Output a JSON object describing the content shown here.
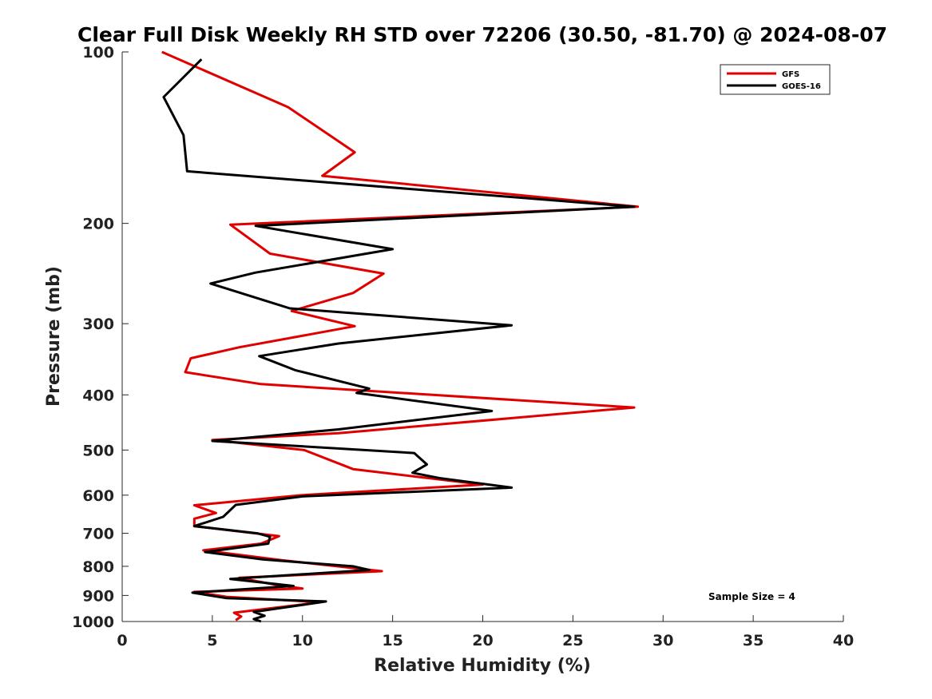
{
  "chart_data": {
    "type": "line",
    "title": "Clear Full Disk Weekly RH STD over 72206 (30.50, -81.70) @ 2024-08-07",
    "xlabel": "Relative Humidity (%)",
    "ylabel": "Pressure (mb)",
    "xlim": [
      0,
      40
    ],
    "ylim": [
      1000,
      100
    ],
    "y_scale": "log",
    "x_ticks": [
      0,
      5,
      10,
      15,
      20,
      25,
      30,
      35,
      40
    ],
    "y_ticks": [
      100,
      200,
      300,
      400,
      500,
      600,
      700,
      800,
      900,
      1000
    ],
    "grid": false,
    "legend_position": "top-right",
    "annotation": "Sample Size = 4",
    "series": [
      {
        "name": "GFS",
        "color": "#e00000",
        "points": [
          [
            2.2,
            100
          ],
          [
            9.2,
            125
          ],
          [
            12.9,
            150
          ],
          [
            11.1,
            165
          ],
          [
            28.6,
            187
          ],
          [
            6.0,
            201
          ],
          [
            8.2,
            226
          ],
          [
            14.5,
            245
          ],
          [
            12.8,
            265
          ],
          [
            9.4,
            285
          ],
          [
            12.9,
            303
          ],
          [
            6.5,
            330
          ],
          [
            3.8,
            345
          ],
          [
            3.5,
            365
          ],
          [
            7.7,
            383
          ],
          [
            28.4,
            421
          ],
          [
            12.0,
            467
          ],
          [
            5.0,
            480
          ],
          [
            10.1,
            500
          ],
          [
            12.8,
            540
          ],
          [
            20.0,
            575
          ],
          [
            10.0,
            600
          ],
          [
            4.0,
            625
          ],
          [
            5.2,
            645
          ],
          [
            4.0,
            660
          ],
          [
            4.0,
            680
          ],
          [
            8.7,
            708
          ],
          [
            7.7,
            730
          ],
          [
            4.5,
            750
          ],
          [
            8.8,
            780
          ],
          [
            14.4,
            816
          ],
          [
            6.5,
            838
          ],
          [
            8.5,
            862
          ],
          [
            10.0,
            875
          ],
          [
            4.0,
            887
          ],
          [
            5.8,
            905
          ],
          [
            11.0,
            925
          ],
          [
            6.2,
            965
          ],
          [
            6.6,
            980
          ],
          [
            6.3,
            995
          ]
        ]
      },
      {
        "name": "GOES-16",
        "color": "#000000",
        "points": [
          [
            4.4,
            103
          ],
          [
            2.3,
            120
          ],
          [
            3.4,
            140
          ],
          [
            3.6,
            162
          ],
          [
            28.4,
            187
          ],
          [
            7.4,
            202
          ],
          [
            15.0,
            222
          ],
          [
            7.4,
            244
          ],
          [
            4.9,
            255
          ],
          [
            9.3,
            282
          ],
          [
            21.6,
            302
          ],
          [
            12.0,
            325
          ],
          [
            7.6,
            342
          ],
          [
            9.6,
            362
          ],
          [
            13.7,
            390
          ],
          [
            13.0,
            397
          ],
          [
            20.5,
            427
          ],
          [
            12.0,
            460
          ],
          [
            5.0,
            482
          ],
          [
            16.2,
            506
          ],
          [
            16.9,
            530
          ],
          [
            16.1,
            548
          ],
          [
            17.6,
            560
          ],
          [
            21.6,
            582
          ],
          [
            10.0,
            603
          ],
          [
            6.3,
            624
          ],
          [
            5.6,
            655
          ],
          [
            4.0,
            680
          ],
          [
            7.5,
            700
          ],
          [
            8.2,
            710
          ],
          [
            8.1,
            730
          ],
          [
            4.6,
            755
          ],
          [
            7.8,
            778
          ],
          [
            12.8,
            800
          ],
          [
            13.7,
            812
          ],
          [
            6.0,
            842
          ],
          [
            9.5,
            866
          ],
          [
            3.9,
            890
          ],
          [
            5.8,
            910
          ],
          [
            11.3,
            922
          ],
          [
            7.3,
            962
          ],
          [
            7.9,
            977
          ],
          [
            7.3,
            990
          ],
          [
            7.7,
            1000
          ]
        ]
      }
    ]
  }
}
